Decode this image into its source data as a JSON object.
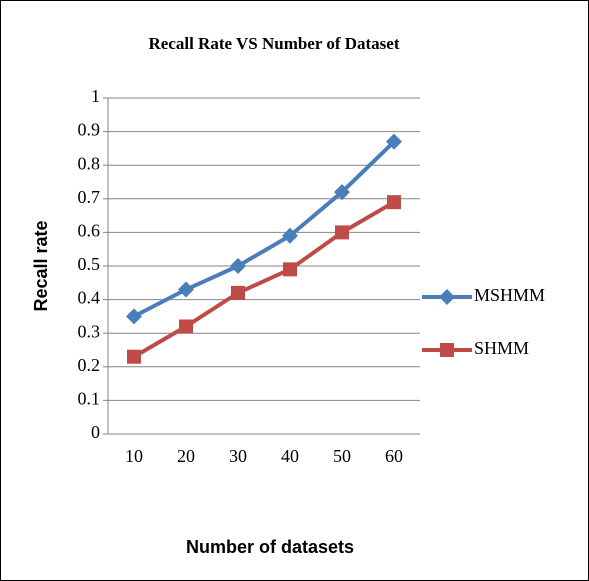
{
  "chart_data": {
    "type": "line",
    "title": "Recall Rate VS Number of Dataset",
    "xlabel": "Number of datasets",
    "ylabel": "Recall rate",
    "categories": [
      10,
      20,
      30,
      40,
      50,
      60
    ],
    "series": [
      {
        "name": "MSHMM",
        "color": "#4a7ebb",
        "marker": "diamond",
        "values": [
          0.35,
          0.43,
          0.5,
          0.59,
          0.72,
          0.87
        ]
      },
      {
        "name": "SHMM",
        "color": "#be4b48",
        "marker": "square",
        "values": [
          0.23,
          0.32,
          0.42,
          0.49,
          0.6,
          0.69
        ]
      }
    ],
    "ylim": [
      0,
      1
    ],
    "yticks": [
      0,
      0.1,
      0.2,
      0.3,
      0.4,
      0.5,
      0.6,
      0.7,
      0.8,
      0.9,
      1
    ],
    "grid": true,
    "legend": "right"
  }
}
